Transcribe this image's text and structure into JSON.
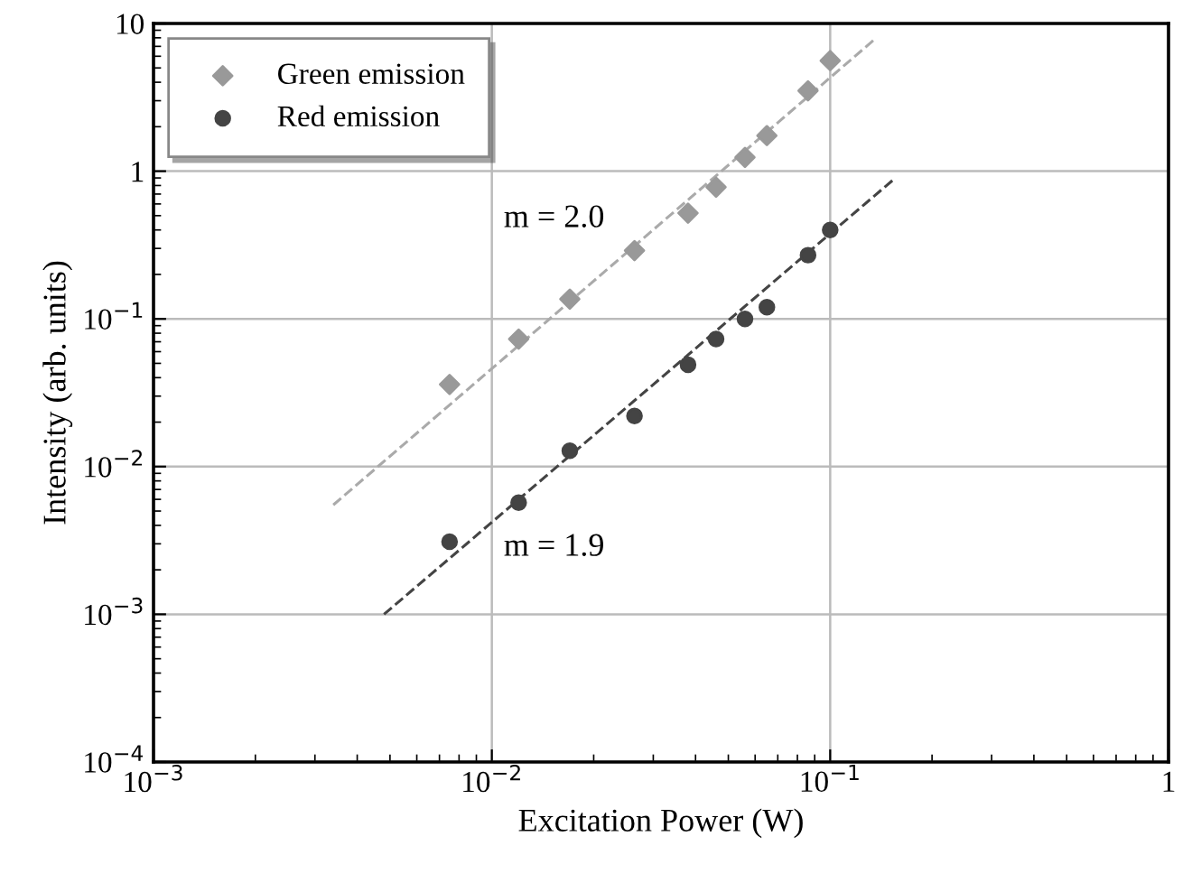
{
  "chart_data": {
    "type": "scatter",
    "xlabel": "Excitation Power (W)",
    "ylabel": "Intensity (arb. units)",
    "log": "xy",
    "grid": true,
    "legend": "top left",
    "xlim": [
      0.001,
      1
    ],
    "ylim": [
      0.0001,
      10
    ],
    "xticks": [
      {
        "value": 0.001,
        "label": "10$^{−3}$"
      },
      {
        "value": 0.01,
        "label": "10$^{−2}$"
      },
      {
        "value": 0.1,
        "label": "10$^{−1}$"
      },
      1
    ],
    "yticks": [
      {
        "value": 0.0001,
        "label": "10$^{−4}$"
      },
      {
        "value": 0.001,
        "label": "10$^{−3}$"
      },
      {
        "value": 0.01,
        "label": "10$^{−2}$"
      },
      {
        "value": 0.1,
        "label": "10$^{−1}$"
      },
      1,
      10
    ],
    "series": [
      {
        "name": "Green emission",
        "marker": "diamond",
        "color": "#999999",
        "x": [
          0.0075,
          0.012,
          0.017,
          0.0264,
          0.038,
          0.046,
          0.056,
          0.065,
          0.086,
          0.1
        ],
        "values": [
          0.036,
          0.073,
          0.136,
          0.29,
          0.52,
          0.78,
          1.24,
          1.74,
          3.5,
          5.6
        ]
      },
      {
        "name": "Red emission",
        "marker": "circle",
        "color": "#444444",
        "x": [
          0.0075,
          0.012,
          0.017,
          0.0264,
          0.038,
          0.046,
          0.056,
          0.065,
          0.086,
          0.1
        ],
        "values": [
          0.0031,
          0.0057,
          0.0128,
          0.022,
          0.049,
          0.073,
          0.1,
          0.12,
          0.27,
          0.4
        ]
      },
      {
        "type": "line",
        "line_style": "dashed",
        "color": "#aaaaaa",
        "x": [
          0.0034,
          0.137
        ],
        "values": [
          0.0055,
          8.0
        ]
      },
      {
        "type": "line",
        "line_style": "dashed",
        "color": "#444444",
        "x": [
          0.0048,
          0.155
        ],
        "values": [
          0.001,
          0.89
        ]
      }
    ],
    "annotations": [
      "m = 2.0",
      "m = 1.9"
    ]
  }
}
